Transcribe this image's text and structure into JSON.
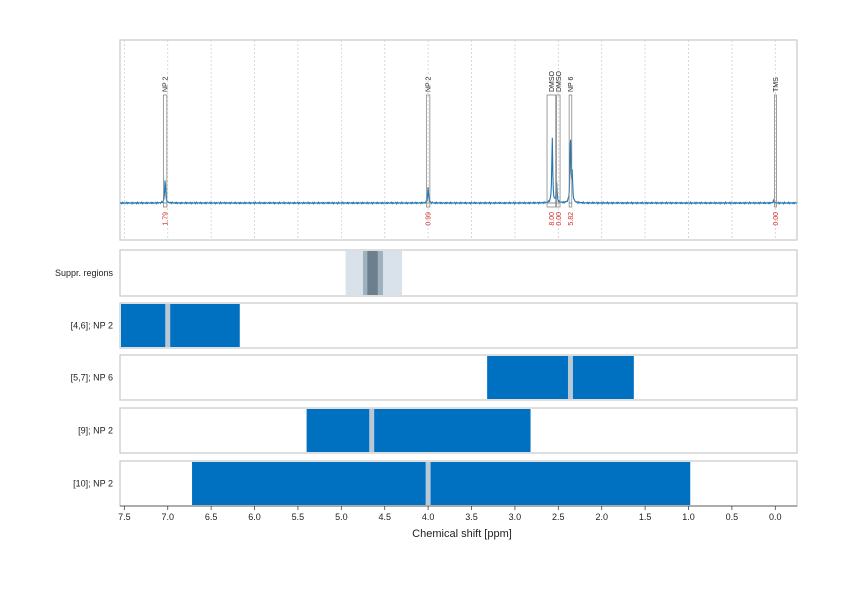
{
  "chart_data": {
    "type": "nmr-spectrum",
    "xlabel": "Chemical shift [ppm]",
    "x_axis": {
      "reversed": true,
      "xlim": [
        7.55,
        -0.25
      ],
      "ticks": [
        "7.5",
        "7.0",
        "6.5",
        "6.0",
        "5.5",
        "5.0",
        "4.5",
        "4.0",
        "3.5",
        "3.0",
        "2.5",
        "2.0",
        "1.5",
        "1.0",
        "0.5",
        "0.0"
      ]
    },
    "spectrum": {
      "color": "#1f77b4",
      "peaks": [
        {
          "ppm": 7.03,
          "height": 0.36
        },
        {
          "ppm": 4.0,
          "height": 0.23
        },
        {
          "ppm": 2.57,
          "height": 0.95
        },
        {
          "ppm": 2.52,
          "height": 0.3
        },
        {
          "ppm": 2.36,
          "height": 1.02
        },
        {
          "ppm": 2.34,
          "height": 0.4
        },
        {
          "ppm": 0.02,
          "height": 0.04
        }
      ],
      "annotations": [
        {
          "label": "NP 2",
          "ppm": 7.03,
          "width": 0.04,
          "integral": "1.79"
        },
        {
          "label": "NP 2",
          "ppm": 4.0,
          "width": 0.04,
          "integral": "0.99"
        },
        {
          "label": "DMSO",
          "ppm": 2.58,
          "width": 0.1,
          "integral": "8.00"
        },
        {
          "label": "DMSO",
          "ppm": 2.5,
          "width": 0.04,
          "integral": "0.00"
        },
        {
          "label": "NP 6",
          "ppm": 2.36,
          "width": 0.03,
          "integral": "5.82"
        },
        {
          "label": "TMS",
          "ppm": 0.0,
          "width": 0.02,
          "integral": "0.00"
        }
      ]
    },
    "region_rows": [
      {
        "label": "Suppr. regions",
        "regions": [
          {
            "from": 4.95,
            "to": 4.3,
            "color": "#d9e2ea"
          },
          {
            "from": 4.75,
            "to": 4.52,
            "color": "#9fb1bf"
          },
          {
            "from": 4.7,
            "to": 4.58,
            "color": "#6b7f8e"
          }
        ]
      },
      {
        "label": "[4,6]; NP 2",
        "regions": [
          {
            "from": 7.55,
            "to": 6.17,
            "color": "#0070c0"
          }
        ],
        "markers": [
          7.0
        ]
      },
      {
        "label": "[5,7]; NP 6",
        "regions": [
          {
            "from": 3.32,
            "to": 1.63,
            "color": "#0070c0"
          }
        ],
        "markers": [
          2.36
        ]
      },
      {
        "label": "[9]; NP 2",
        "regions": [
          {
            "from": 5.4,
            "to": 2.82,
            "color": "#0070c0"
          }
        ],
        "markers": [
          4.65
        ]
      },
      {
        "label": "[10]; NP 2",
        "regions": [
          {
            "from": 6.72,
            "to": 0.98,
            "color": "#0070c0"
          }
        ],
        "markers": [
          4.0
        ]
      }
    ],
    "marker_color": "#b7c8d6",
    "grid": true
  }
}
